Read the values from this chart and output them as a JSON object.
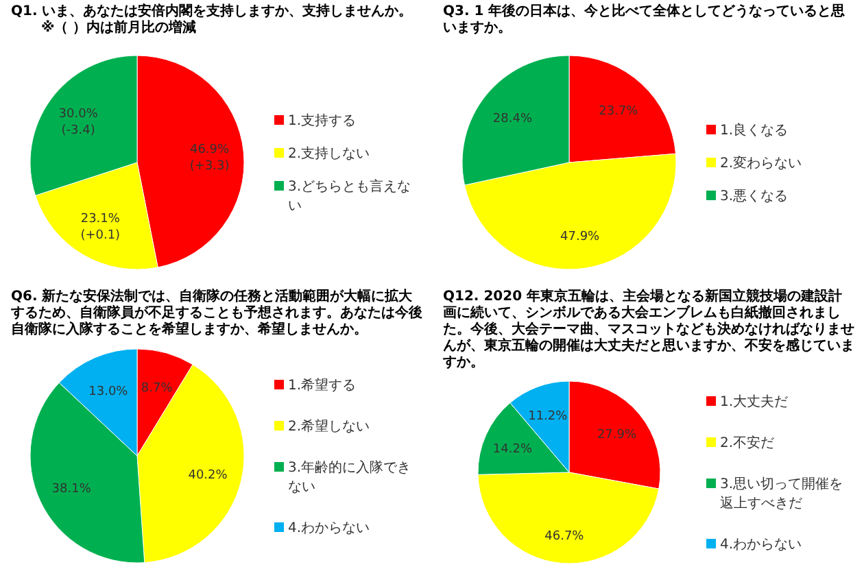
{
  "chart_data": [
    {
      "type": "pie",
      "title": "Q1. いま、あなたは安倍内閣を支持しますか、支持しませんか。",
      "subtitle": "※（ ）内は前月比の増減",
      "categories": [
        "1.支持する",
        "2.支持しない",
        "3.どちらとも言えない"
      ],
      "values": [
        46.9,
        23.1,
        30.0
      ],
      "colors": [
        "#ff0000",
        "#ffff00",
        "#00b050"
      ],
      "value_labels": [
        "46.9%\n(+3.3)",
        "23.1%\n(+0.1)",
        "30.0%\n(-3.4)"
      ],
      "legend": "right"
    },
    {
      "type": "pie",
      "title": "Q3. 1 年後の日本は、今と比べて全体としてどうなっていると思いますか。",
      "categories": [
        "1.良くなる",
        "2.変わらない",
        "3.悪くなる"
      ],
      "values": [
        23.7,
        47.9,
        28.4
      ],
      "colors": [
        "#ff0000",
        "#ffff00",
        "#00b050"
      ],
      "value_labels": [
        "23.7%",
        "47.9%",
        "28.4%"
      ],
      "legend": "right"
    },
    {
      "type": "pie",
      "title": "Q6. 新たな安保法制では、自衛隊の任務と活動範囲が大幅に拡大するため、自衛隊員が不足することも予想されます。あなたは今後自衛隊に入隊することを希望しますか、希望しませんか。",
      "categories": [
        "1.希望する",
        "2.希望しない",
        "3.年齢的に入隊できない",
        "4.わからない"
      ],
      "values": [
        8.7,
        40.2,
        38.1,
        13.0
      ],
      "colors": [
        "#ff0000",
        "#ffff00",
        "#00b050",
        "#00b0f0"
      ],
      "value_labels": [
        "8.7%",
        "40.2%",
        "38.1%",
        "13.0%"
      ],
      "legend": "right"
    },
    {
      "type": "pie",
      "title": "Q12. 2020 年東京五輪は、主会場となる新国立競技場の建設計画に続いて、シンボルである大会エンブレムも白紙撤回されました。今後、大会テーマ曲、マスコットなども決めなければなりませんが、東京五輪の開催は大丈夫だと思いますか、不安を感じていますか。",
      "categories": [
        "1.大丈夫だ",
        "2.不安だ",
        "3.思い切って開催を返上すべきだ",
        "4.わからない"
      ],
      "values": [
        27.9,
        46.7,
        14.2,
        11.2
      ],
      "colors": [
        "#ff0000",
        "#ffff00",
        "#00b050",
        "#00b0f0"
      ],
      "value_labels": [
        "27.9%",
        "46.7%",
        "14.2%",
        "11.2%"
      ],
      "legend": "right"
    }
  ]
}
